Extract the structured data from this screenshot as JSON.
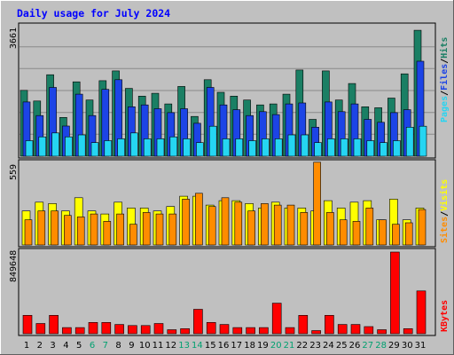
{
  "chart_data": [
    {
      "type": "bar",
      "title": "Daily usage for July 2024",
      "categories": [
        "1",
        "2",
        "3",
        "4",
        "5",
        "6",
        "7",
        "8",
        "9",
        "10",
        "11",
        "12",
        "13",
        "14",
        "15",
        "16",
        "17",
        "18",
        "19",
        "20",
        "21",
        "22",
        "23",
        "24",
        "25",
        "26",
        "27",
        "28",
        "29",
        "30",
        "31"
      ],
      "weekend_days": [
        "6",
        "7",
        "13",
        "14",
        "20",
        "21",
        "27",
        "28"
      ],
      "max_label": "3661",
      "ylim": [
        0,
        3661
      ],
      "series": [
        {
          "name": "Hits",
          "color": "#1a7f64",
          "values": [
            1836,
            1539,
            2270,
            1080,
            2074,
            1566,
            2106,
            2376,
            1890,
            1674,
            1755,
            1458,
            1944,
            1107,
            2133,
            1782,
            1674,
            1566,
            1431,
            1458,
            1728,
            2403,
            1026,
            2376,
            1566,
            2025,
            1377,
            1350,
            1620,
            2295,
            3510
          ]
        },
        {
          "name": "Files",
          "color": "#1c44e6",
          "values": [
            1512,
            1134,
            1917,
            842,
            1728,
            1134,
            1863,
            2133,
            1377,
            1431,
            1323,
            1215,
            1323,
            918,
            1917,
            1431,
            1296,
            1134,
            1242,
            1161,
            1458,
            1485,
            808,
            1512,
            1242,
            1458,
            1026,
            944,
            1215,
            1296,
            2646
          ]
        },
        {
          "name": "Pages",
          "color": "#25d5f2",
          "values": [
            432,
            540,
            648,
            540,
            594,
            378,
            432,
            486,
            648,
            486,
            486,
            540,
            486,
            378,
            837,
            486,
            486,
            432,
            486,
            486,
            594,
            594,
            378,
            486,
            486,
            486,
            432,
            378,
            432,
            810,
            837
          ]
        }
      ]
    },
    {
      "type": "bar",
      "categories": [
        "1",
        "2",
        "3",
        "4",
        "5",
        "6",
        "7",
        "8",
        "9",
        "10",
        "11",
        "12",
        "13",
        "14",
        "15",
        "16",
        "17",
        "18",
        "19",
        "20",
        "21",
        "22",
        "23",
        "24",
        "25",
        "26",
        "27",
        "28",
        "29",
        "30",
        "31"
      ],
      "max_label": "559",
      "ylim": [
        0,
        559
      ],
      "series": [
        {
          "name": "Visits",
          "color": "#ffff00",
          "values": [
            230,
            290,
            280,
            230,
            320,
            230,
            210,
            290,
            250,
            250,
            230,
            260,
            330,
            330,
            270,
            300,
            300,
            280,
            250,
            290,
            250,
            250,
            230,
            300,
            250,
            290,
            300,
            170,
            310,
            170,
            250
          ]
        },
        {
          "name": "Sites",
          "color": "#ff8c00",
          "values": [
            170,
            230,
            230,
            200,
            190,
            210,
            160,
            210,
            140,
            220,
            210,
            210,
            310,
            350,
            260,
            320,
            290,
            230,
            280,
            270,
            270,
            220,
            560,
            220,
            170,
            160,
            250,
            170,
            140,
            150,
            240
          ]
        }
      ]
    },
    {
      "type": "bar",
      "categories": [
        "1",
        "2",
        "3",
        "4",
        "5",
        "6",
        "7",
        "8",
        "9",
        "10",
        "11",
        "12",
        "13",
        "14",
        "15",
        "16",
        "17",
        "18",
        "19",
        "20",
        "21",
        "22",
        "23",
        "24",
        "25",
        "26",
        "27",
        "28",
        "29",
        "30",
        "31"
      ],
      "max_label": "849648",
      "ylim": [
        0,
        849648
      ],
      "series": [
        {
          "name": "KBytes",
          "color": "#ff0000",
          "values": [
            191000,
            106000,
            191000,
            64000,
            64000,
            117000,
            117000,
            96000,
            85000,
            85000,
            106000,
            42000,
            53000,
            254000,
            117000,
            96000,
            64000,
            64000,
            64000,
            318000,
            64000,
            191000,
            32000,
            191000,
            96000,
            96000,
            74000,
            42000,
            849648,
            53000,
            445000
          ]
        }
      ]
    }
  ],
  "legend": {
    "sep": "/",
    "top": [
      {
        "label": "Pages",
        "color": "#25d5f2"
      },
      {
        "label": "Files",
        "color": "#1c44e6"
      },
      {
        "label": "Hits",
        "color": "#1a7f64"
      }
    ],
    "middle": [
      {
        "label": "Sites",
        "color": "#ff8c00"
      },
      {
        "label": "Visits",
        "color": "#ffff00"
      }
    ],
    "bottom": [
      {
        "label": "KBytes",
        "color": "#ff0000"
      }
    ]
  },
  "colors": {
    "frame": "#c0c0c0",
    "panel": "#c0c0c0",
    "title": "#0000ff",
    "weekday_label": "#000000",
    "weekend_label": "#00a070",
    "sep": "#000000"
  }
}
